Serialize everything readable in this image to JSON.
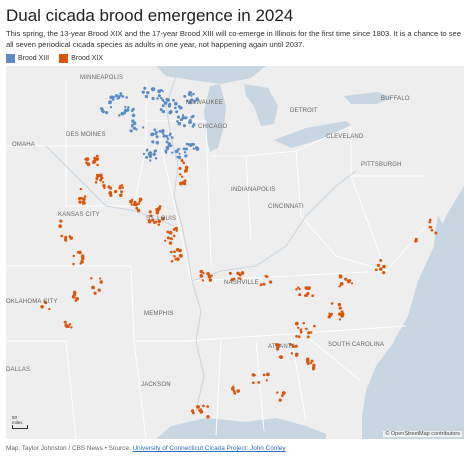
{
  "title": "Dual cicada brood emergence in 2024",
  "subtitle": "This spring, the 13-year Brood XIX and the 17-year Brood XIII will co-emerge in Illinois for the first time since 1803. It is a chance to see all seven periodical cicada species as adults in one year, not happening again until 2037.",
  "legend": [
    {
      "label": "Brood XIII",
      "color": "#5b8cc6"
    },
    {
      "label": "Brood XIX",
      "color": "#d9560b"
    }
  ],
  "map": {
    "cities": [
      "MINNEAPOLIS",
      "DES MOINES",
      "OMAHA",
      "MILWAUKEE",
      "CHICAGO",
      "DETROIT",
      "BUFFALO",
      "CLEVELAND",
      "PITTSBURGH",
      "INDIANAPOLIS",
      "CINCINNATI",
      "ST. LOUIS",
      "KANSAS CITY",
      "NASHVILLE",
      "MEMPHIS",
      "ATLANTA",
      "SOUTH CAROLINA",
      "OKLAHOMA CITY",
      "JACKSON",
      "DALLAS"
    ],
    "scale_value": "50",
    "scale_unit": "miles",
    "attribution": "© OpenStreetMap contributors"
  },
  "footer": {
    "credit": "Map: Taylor Johnston / CBS News • Source: ",
    "source_link": "University of Connecticut Cicada Project: John Cooley"
  }
}
